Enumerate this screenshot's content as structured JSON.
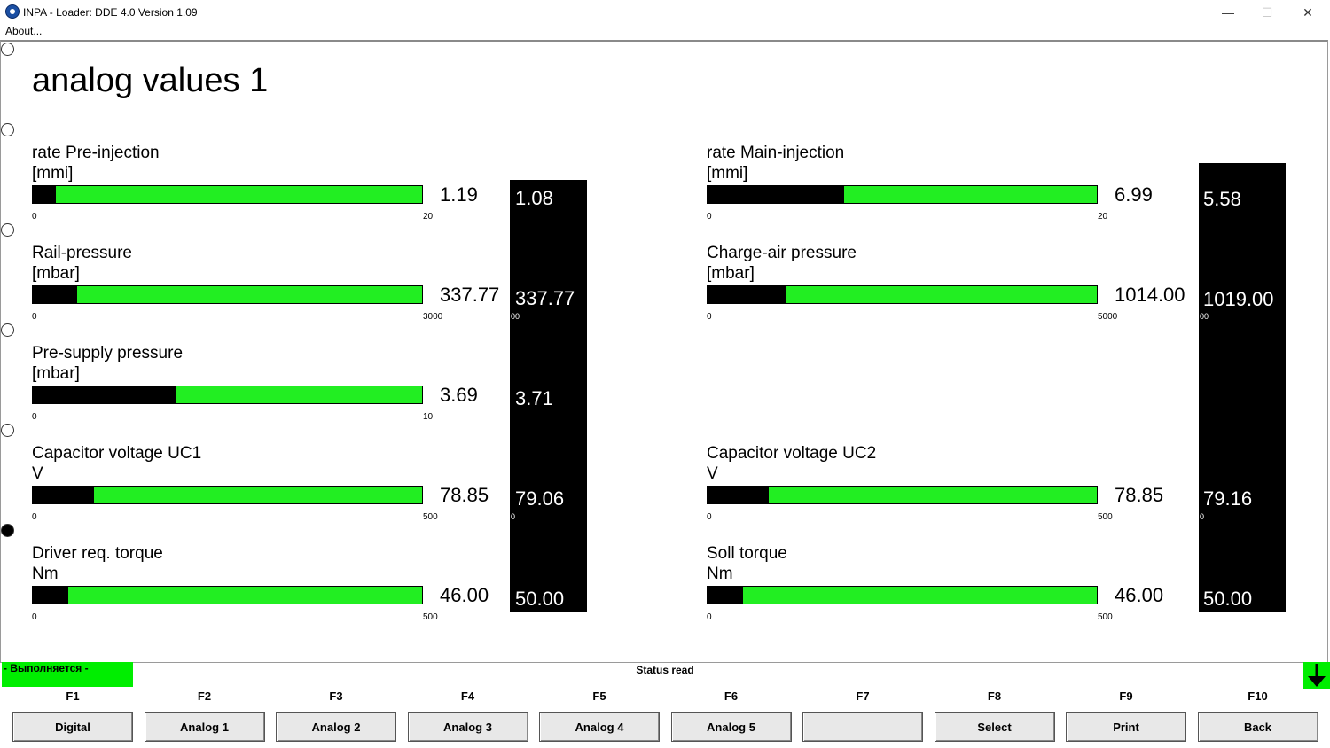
{
  "window": {
    "title": "INPA - Loader:  DDE 4.0 Version 1.09",
    "minimize": "—",
    "maximize": "☐",
    "close": "✕"
  },
  "menu": {
    "about": "About..."
  },
  "page": {
    "title": "analog values 1"
  },
  "gauges_left": [
    {
      "label": "rate Pre-injection",
      "unit": "[mmi]",
      "min": "0",
      "max": "20",
      "value": "1.19",
      "fraction": 0.06
    },
    {
      "label": "Rail-pressure",
      "unit": "[mbar]",
      "min": "0",
      "max": "3000",
      "value": "337.77",
      "fraction": 0.113
    },
    {
      "label": "Pre-supply pressure",
      "unit": "[mbar]",
      "min": "0",
      "max": "10",
      "value": "3.69",
      "fraction": 0.369
    },
    {
      "label": "Capacitor voltage UC1",
      "unit": "V",
      "min": "0",
      "max": "500",
      "value": "78.85",
      "fraction": 0.158
    },
    {
      "label": "Driver req. torque",
      "unit": "Nm",
      "min": "0",
      "max": "500",
      "value": "46.00",
      "fraction": 0.092
    }
  ],
  "gauges_right": [
    {
      "label": "rate Main-injection",
      "unit": "[mmi]",
      "min": "0",
      "max": "20",
      "value": "6.99",
      "fraction": 0.35
    },
    {
      "label": "Charge-air pressure",
      "unit": "[mbar]",
      "min": "0",
      "max": "5000",
      "value": "1014.00",
      "fraction": 0.203
    },
    {
      "label": "Capacitor voltage UC2",
      "unit": "V",
      "min": "0",
      "max": "500",
      "value": "78.85",
      "fraction": 0.158
    },
    {
      "label": "Soll torque",
      "unit": "Nm",
      "min": "0",
      "max": "500",
      "value": "46.00",
      "fraction": 0.092
    }
  ],
  "panel_left": {
    "values": [
      "1.08",
      "337.77",
      "3.71",
      "79.06",
      "50.00"
    ],
    "fragments": [
      "00",
      "0"
    ]
  },
  "panel_right": {
    "values": [
      "5.58",
      "1019.00",
      "79.16",
      "50.00"
    ],
    "fragments": [
      "00",
      "0"
    ]
  },
  "status": {
    "left": "- Выполняется -",
    "center": "Status read"
  },
  "function_keys": [
    {
      "key": "F1",
      "label": "Digital"
    },
    {
      "key": "F2",
      "label": "Analog 1"
    },
    {
      "key": "F3",
      "label": "Analog 2"
    },
    {
      "key": "F4",
      "label": "Analog 3"
    },
    {
      "key": "F5",
      "label": "Analog 4"
    },
    {
      "key": "F6",
      "label": "Analog 5"
    },
    {
      "key": "F7",
      "label": ""
    },
    {
      "key": "F8",
      "label": "Select"
    },
    {
      "key": "F9",
      "label": "Print"
    },
    {
      "key": "F10",
      "label": "Back"
    }
  ],
  "colors": {
    "bar_green": "#22ee22",
    "status_green": "#00ee00",
    "panel": "#000000"
  }
}
